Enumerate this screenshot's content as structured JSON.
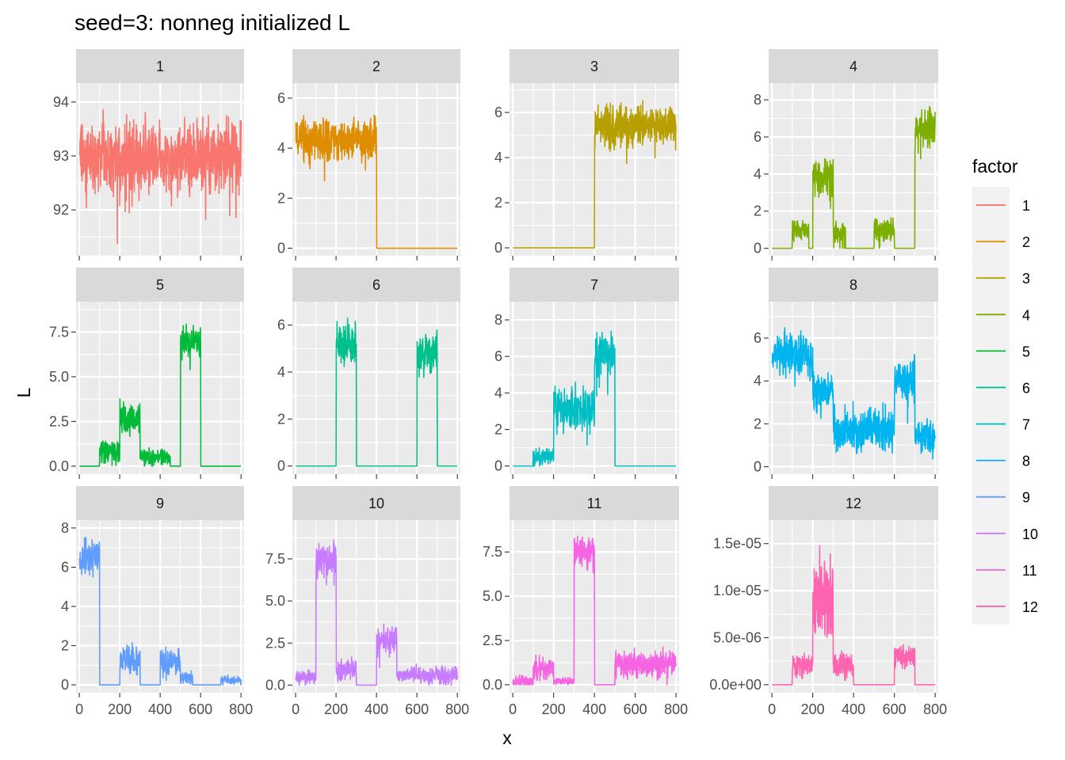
{
  "chart_data": {
    "type": "line",
    "title": "seed=3: nonneg initialized L",
    "xlabel": "x",
    "ylabel": "L",
    "legend_title": "factor",
    "legend_position": "right",
    "grid": true,
    "x_range": [
      1,
      800
    ],
    "x_ticks": [
      0,
      200,
      400,
      600,
      800
    ],
    "x_tick_labels": [
      "0",
      "200",
      "400",
      "600",
      "800"
    ],
    "panels": [
      {
        "label": "1",
        "color": "#F8766D",
        "ylim": [
          91.15,
          94.35
        ],
        "yticks": [
          92,
          93,
          94
        ],
        "ytick_labels": [
          "92",
          "93",
          "94"
        ],
        "segments": [
          {
            "x0": 1,
            "x1": 800,
            "mean": 93.0,
            "amp": 0.65
          }
        ]
      },
      {
        "label": "2",
        "color": "#DE8C00",
        "ylim": [
          -0.3,
          6.6
        ],
        "yticks": [
          0,
          2,
          4,
          6
        ],
        "ytick_labels": [
          "0",
          "2",
          "4",
          "6"
        ],
        "segments": [
          {
            "x0": 1,
            "x1": 400,
            "mean": 4.4,
            "amp": 0.9
          }
        ]
      },
      {
        "label": "3",
        "color": "#B79F00",
        "ylim": [
          -0.35,
          7.3
        ],
        "yticks": [
          0,
          2,
          4,
          6
        ],
        "ytick_labels": [
          "0",
          "2",
          "4",
          "6"
        ],
        "segments": [
          {
            "x0": 401,
            "x1": 800,
            "mean": 5.4,
            "amp": 0.9
          }
        ]
      },
      {
        "label": "4",
        "color": "#7CAE00",
        "ylim": [
          -0.4,
          8.9
        ],
        "yticks": [
          0,
          2,
          4,
          6,
          8
        ],
        "ytick_labels": [
          "0",
          "2",
          "4",
          "6",
          "8"
        ],
        "segments": [
          {
            "x0": 100,
            "x1": 180,
            "mean": 1.0,
            "amp": 0.6
          },
          {
            "x0": 201,
            "x1": 300,
            "mean": 3.9,
            "amp": 1.0
          },
          {
            "x0": 301,
            "x1": 360,
            "mean": 0.8,
            "amp": 0.6
          },
          {
            "x0": 501,
            "x1": 600,
            "mean": 1.0,
            "amp": 0.7
          },
          {
            "x0": 701,
            "x1": 800,
            "mean": 6.5,
            "amp": 1.0
          }
        ]
      },
      {
        "label": "5",
        "color": "#00BA38",
        "ylim": [
          -0.45,
          9.2
        ],
        "yticks": [
          0,
          2.5,
          5,
          7.5
        ],
        "ytick_labels": [
          "0.0",
          "2.5",
          "5.0",
          "7.5"
        ],
        "segments": [
          {
            "x0": 100,
            "x1": 200,
            "mean": 0.8,
            "amp": 0.6
          },
          {
            "x0": 201,
            "x1": 300,
            "mean": 2.7,
            "amp": 0.9
          },
          {
            "x0": 301,
            "x1": 450,
            "mean": 0.5,
            "amp": 0.5
          },
          {
            "x0": 501,
            "x1": 600,
            "mean": 7.0,
            "amp": 0.9
          }
        ]
      },
      {
        "label": "6",
        "color": "#00C08B",
        "ylim": [
          -0.35,
          7.0
        ],
        "yticks": [
          0,
          2,
          4,
          6
        ],
        "ytick_labels": [
          "0",
          "2",
          "4",
          "6"
        ],
        "segments": [
          {
            "x0": 201,
            "x1": 300,
            "mean": 5.2,
            "amp": 0.9
          },
          {
            "x0": 601,
            "x1": 700,
            "mean": 4.8,
            "amp": 0.9
          }
        ]
      },
      {
        "label": "7",
        "color": "#00BFC4",
        "ylim": [
          -0.45,
          9.0
        ],
        "yticks": [
          0,
          2,
          4,
          6,
          8
        ],
        "ytick_labels": [
          "0",
          "2",
          "4",
          "6",
          "8"
        ],
        "segments": [
          {
            "x0": 100,
            "x1": 200,
            "mean": 0.5,
            "amp": 0.5
          },
          {
            "x0": 201,
            "x1": 400,
            "mean": 3.2,
            "amp": 1.1
          },
          {
            "x0": 401,
            "x1": 500,
            "mean": 6.1,
            "amp": 1.1
          }
        ]
      },
      {
        "label": "8",
        "color": "#00B4F0",
        "ylim": [
          -0.35,
          7.7
        ],
        "yticks": [
          0,
          2,
          4,
          6
        ],
        "ytick_labels": [
          "0",
          "2",
          "4",
          "6"
        ],
        "segments": [
          {
            "x0": 1,
            "x1": 200,
            "mean": 5.2,
            "amp": 1.0
          },
          {
            "x0": 201,
            "x1": 300,
            "mean": 3.5,
            "amp": 0.8
          },
          {
            "x0": 301,
            "x1": 600,
            "mean": 1.8,
            "amp": 1.0
          },
          {
            "x0": 601,
            "x1": 700,
            "mean": 4.0,
            "amp": 1.0
          },
          {
            "x0": 701,
            "x1": 800,
            "mean": 1.5,
            "amp": 0.7
          }
        ]
      },
      {
        "label": "9",
        "color": "#619CFF",
        "ylim": [
          -0.4,
          8.4
        ],
        "yticks": [
          0,
          2,
          4,
          6,
          8
        ],
        "ytick_labels": [
          "0",
          "2",
          "4",
          "6",
          "8"
        ],
        "segments": [
          {
            "x0": 1,
            "x1": 100,
            "mean": 6.6,
            "amp": 0.9
          },
          {
            "x0": 201,
            "x1": 300,
            "mean": 1.3,
            "amp": 0.8
          },
          {
            "x0": 401,
            "x1": 500,
            "mean": 1.1,
            "amp": 0.7
          },
          {
            "x0": 501,
            "x1": 560,
            "mean": 0.4,
            "amp": 0.3
          },
          {
            "x0": 701,
            "x1": 800,
            "mean": 0.25,
            "amp": 0.2
          }
        ]
      },
      {
        "label": "10",
        "color": "#C77CFF",
        "ylim": [
          -0.45,
          9.8
        ],
        "yticks": [
          0,
          2.5,
          5,
          7.5
        ],
        "ytick_labels": [
          "0.0",
          "2.5",
          "5.0",
          "7.5"
        ],
        "segments": [
          {
            "x0": 1,
            "x1": 100,
            "mean": 0.5,
            "amp": 0.4
          },
          {
            "x0": 101,
            "x1": 200,
            "mean": 7.5,
            "amp": 1.0
          },
          {
            "x0": 201,
            "x1": 300,
            "mean": 1.0,
            "amp": 0.7
          },
          {
            "x0": 401,
            "x1": 500,
            "mean": 2.6,
            "amp": 0.9
          },
          {
            "x0": 501,
            "x1": 800,
            "mean": 0.6,
            "amp": 0.5
          }
        ]
      },
      {
        "label": "11",
        "color": "#F564E3",
        "ylim": [
          -0.45,
          9.3
        ],
        "yticks": [
          0,
          2.5,
          5,
          7.5
        ],
        "ytick_labels": [
          "0.0",
          "2.5",
          "5.0",
          "7.5"
        ],
        "segments": [
          {
            "x0": 1,
            "x1": 100,
            "mean": 0.2,
            "amp": 0.3
          },
          {
            "x0": 101,
            "x1": 200,
            "mean": 0.9,
            "amp": 0.6
          },
          {
            "x0": 201,
            "x1": 300,
            "mean": 0.2,
            "amp": 0.2
          },
          {
            "x0": 301,
            "x1": 400,
            "mean": 7.6,
            "amp": 0.8
          },
          {
            "x0": 501,
            "x1": 800,
            "mean": 1.2,
            "amp": 0.8
          }
        ]
      },
      {
        "label": "12",
        "color": "#FF64B0",
        "ylim": [
          -8.5e-07,
          1.75e-05
        ],
        "yticks": [
          0,
          5e-06,
          1e-05,
          1.5e-05
        ],
        "ytick_labels": [
          "0.0e+00",
          "5.0e-06",
          "1.0e-05",
          "1.5e-05"
        ],
        "segments": [
          {
            "x0": 100,
            "x1": 200,
            "mean": 2e-06,
            "amp": 1.3e-06
          },
          {
            "x0": 201,
            "x1": 300,
            "mean": 9e-06,
            "amp": 4.5e-06
          },
          {
            "x0": 301,
            "x1": 400,
            "mean": 2e-06,
            "amp": 1.4e-06
          },
          {
            "x0": 601,
            "x1": 700,
            "mean": 3e-06,
            "amp": 1.2e-06
          }
        ]
      }
    ]
  }
}
